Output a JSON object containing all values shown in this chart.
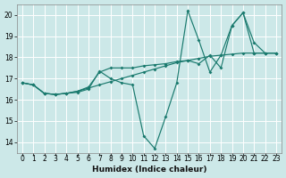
{
  "xlabel": "Humidex (Indice chaleur)",
  "xlim": [
    -0.5,
    23.5
  ],
  "ylim": [
    13.5,
    20.5
  ],
  "xticks": [
    0,
    1,
    2,
    3,
    4,
    5,
    6,
    7,
    8,
    9,
    10,
    11,
    12,
    13,
    14,
    15,
    16,
    17,
    18,
    19,
    20,
    21,
    22,
    23
  ],
  "yticks": [
    14,
    15,
    16,
    17,
    18,
    19,
    20
  ],
  "background_color": "#cce8e8",
  "grid_color": "#ffffff",
  "line_color": "#1a7a6e",
  "lines": [
    {
      "comment": "steep V-shape: drops to ~13.7 at x=12, peaks at x=15 ~20.2, then x=16~18.8, x=17~17.3, x=19~19.5, x=20~20.1",
      "x": [
        0,
        1,
        2,
        3,
        4,
        5,
        6,
        7,
        8,
        9,
        10,
        11,
        12,
        13,
        14,
        15,
        16,
        17,
        18,
        19,
        20,
        21,
        22,
        23
      ],
      "y": [
        16.8,
        16.7,
        16.3,
        16.25,
        16.3,
        16.35,
        16.5,
        17.35,
        17.0,
        16.8,
        16.7,
        14.3,
        13.7,
        15.2,
        16.8,
        20.2,
        18.8,
        17.3,
        18.1,
        19.5,
        20.1,
        18.7,
        18.2,
        18.2
      ]
    },
    {
      "x": [
        0,
        1,
        2,
        3,
        4,
        5,
        6,
        7,
        8,
        9,
        10,
        11,
        12,
        13,
        14,
        15,
        16,
        17,
        18,
        19,
        20,
        21,
        22,
        23
      ],
      "y": [
        16.8,
        16.7,
        16.3,
        16.25,
        16.3,
        16.4,
        16.55,
        16.7,
        16.85,
        17.0,
        17.15,
        17.3,
        17.45,
        17.6,
        17.75,
        17.85,
        17.95,
        18.05,
        18.1,
        18.15,
        18.2,
        18.2,
        18.2,
        18.2
      ]
    },
    {
      "x": [
        0,
        1,
        2,
        3,
        4,
        5,
        6,
        7,
        8,
        9,
        10,
        11,
        12,
        13,
        14,
        15,
        16,
        17,
        18,
        19,
        20,
        21,
        22,
        23
      ],
      "y": [
        16.8,
        16.7,
        16.3,
        16.25,
        16.3,
        16.4,
        16.6,
        17.3,
        17.5,
        17.5,
        17.5,
        17.6,
        17.65,
        17.7,
        17.8,
        17.85,
        17.7,
        18.1,
        17.5,
        19.5,
        20.1,
        18.2,
        18.2,
        18.2
      ]
    }
  ]
}
